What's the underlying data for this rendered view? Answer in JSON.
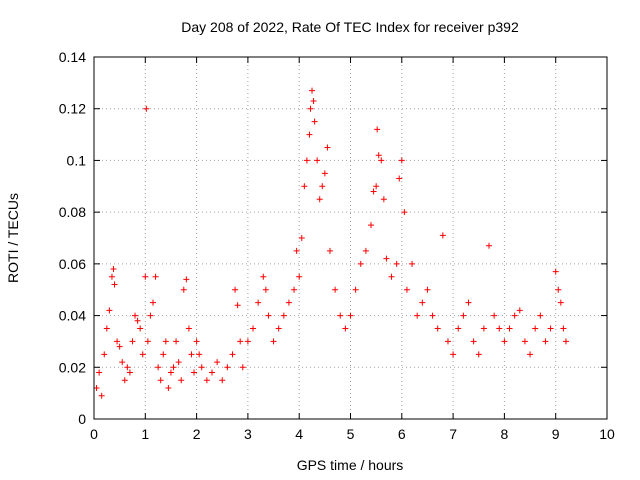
{
  "chart_data": {
    "type": "scatter",
    "title": "Day 208 of 2022, Rate Of TEC Index for receiver p392",
    "xlabel": "GPS time / hours",
    "ylabel": "ROTI / TECUs",
    "xlim": [
      0,
      10
    ],
    "ylim": [
      0,
      0.14
    ],
    "xticks": [
      0,
      1,
      2,
      3,
      4,
      5,
      6,
      7,
      8,
      9,
      10
    ],
    "xtick_labels": [
      "0",
      "1",
      "2",
      "3",
      "4",
      "5",
      "6",
      "7",
      "8",
      "9",
      "10"
    ],
    "yticks": [
      0,
      0.02,
      0.04,
      0.06,
      0.08,
      0.1,
      0.12,
      0.14
    ],
    "ytick_labels": [
      "0",
      "0.02",
      "0.04",
      "0.06",
      "0.08",
      "0.1",
      "0.12",
      "0.14"
    ],
    "grid": true,
    "marker": "+",
    "color": "#ff0000",
    "series": [
      {
        "name": "ROTI",
        "points": [
          [
            0.05,
            0.012
          ],
          [
            0.1,
            0.018
          ],
          [
            0.15,
            0.009
          ],
          [
            0.2,
            0.025
          ],
          [
            0.25,
            0.035
          ],
          [
            0.3,
            0.042
          ],
          [
            0.35,
            0.055
          ],
          [
            0.38,
            0.058
          ],
          [
            0.4,
            0.052
          ],
          [
            0.45,
            0.03
          ],
          [
            0.5,
            0.028
          ],
          [
            0.55,
            0.022
          ],
          [
            0.6,
            0.015
          ],
          [
            0.65,
            0.02
          ],
          [
            0.7,
            0.018
          ],
          [
            0.75,
            0.03
          ],
          [
            0.8,
            0.04
          ],
          [
            0.85,
            0.038
          ],
          [
            0.9,
            0.035
          ],
          [
            0.95,
            0.025
          ],
          [
            1.0,
            0.055
          ],
          [
            1.02,
            0.12
          ],
          [
            1.05,
            0.03
          ],
          [
            1.1,
            0.04
          ],
          [
            1.15,
            0.045
          ],
          [
            1.2,
            0.055
          ],
          [
            1.25,
            0.02
          ],
          [
            1.3,
            0.015
          ],
          [
            1.35,
            0.025
          ],
          [
            1.4,
            0.03
          ],
          [
            1.45,
            0.012
          ],
          [
            1.5,
            0.018
          ],
          [
            1.55,
            0.02
          ],
          [
            1.6,
            0.03
          ],
          [
            1.65,
            0.022
          ],
          [
            1.7,
            0.015
          ],
          [
            1.75,
            0.05
          ],
          [
            1.8,
            0.054
          ],
          [
            1.85,
            0.035
          ],
          [
            1.9,
            0.025
          ],
          [
            1.95,
            0.018
          ],
          [
            2.0,
            0.03
          ],
          [
            2.05,
            0.025
          ],
          [
            2.1,
            0.02
          ],
          [
            2.2,
            0.015
          ],
          [
            2.3,
            0.018
          ],
          [
            2.4,
            0.022
          ],
          [
            2.5,
            0.015
          ],
          [
            2.6,
            0.02
          ],
          [
            2.7,
            0.025
          ],
          [
            2.75,
            0.05
          ],
          [
            2.8,
            0.044
          ],
          [
            2.85,
            0.03
          ],
          [
            2.9,
            0.02
          ],
          [
            3.0,
            0.03
          ],
          [
            3.1,
            0.035
          ],
          [
            3.2,
            0.045
          ],
          [
            3.3,
            0.055
          ],
          [
            3.35,
            0.05
          ],
          [
            3.4,
            0.04
          ],
          [
            3.5,
            0.03
          ],
          [
            3.6,
            0.035
          ],
          [
            3.7,
            0.04
          ],
          [
            3.8,
            0.045
          ],
          [
            3.9,
            0.05
          ],
          [
            3.95,
            0.065
          ],
          [
            4.0,
            0.055
          ],
          [
            4.05,
            0.07
          ],
          [
            4.1,
            0.09
          ],
          [
            4.15,
            0.1
          ],
          [
            4.2,
            0.11
          ],
          [
            4.22,
            0.12
          ],
          [
            4.25,
            0.127
          ],
          [
            4.28,
            0.123
          ],
          [
            4.3,
            0.115
          ],
          [
            4.35,
            0.1
          ],
          [
            4.4,
            0.085
          ],
          [
            4.45,
            0.09
          ],
          [
            4.5,
            0.095
          ],
          [
            4.55,
            0.105
          ],
          [
            4.6,
            0.065
          ],
          [
            4.7,
            0.05
          ],
          [
            4.8,
            0.04
          ],
          [
            4.9,
            0.035
          ],
          [
            5.0,
            0.04
          ],
          [
            5.1,
            0.05
          ],
          [
            5.2,
            0.06
          ],
          [
            5.3,
            0.065
          ],
          [
            5.4,
            0.075
          ],
          [
            5.45,
            0.088
          ],
          [
            5.5,
            0.09
          ],
          [
            5.52,
            0.112
          ],
          [
            5.55,
            0.102
          ],
          [
            5.6,
            0.1
          ],
          [
            5.65,
            0.085
          ],
          [
            5.7,
            0.062
          ],
          [
            5.8,
            0.055
          ],
          [
            5.9,
            0.06
          ],
          [
            5.95,
            0.093
          ],
          [
            6.0,
            0.1
          ],
          [
            6.05,
            0.08
          ],
          [
            6.1,
            0.05
          ],
          [
            6.2,
            0.06
          ],
          [
            6.3,
            0.04
          ],
          [
            6.4,
            0.045
          ],
          [
            6.5,
            0.05
          ],
          [
            6.6,
            0.04
          ],
          [
            6.7,
            0.035
          ],
          [
            6.8,
            0.071
          ],
          [
            6.9,
            0.03
          ],
          [
            7.0,
            0.025
          ],
          [
            7.1,
            0.035
          ],
          [
            7.2,
            0.04
          ],
          [
            7.3,
            0.045
          ],
          [
            7.4,
            0.03
          ],
          [
            7.5,
            0.025
          ],
          [
            7.6,
            0.035
          ],
          [
            7.7,
            0.067
          ],
          [
            7.8,
            0.04
          ],
          [
            7.9,
            0.035
          ],
          [
            8.0,
            0.03
          ],
          [
            8.1,
            0.035
          ],
          [
            8.2,
            0.04
          ],
          [
            8.3,
            0.042
          ],
          [
            8.4,
            0.03
          ],
          [
            8.5,
            0.025
          ],
          [
            8.6,
            0.035
          ],
          [
            8.7,
            0.04
          ],
          [
            8.8,
            0.03
          ],
          [
            8.9,
            0.035
          ],
          [
            9.0,
            0.057
          ],
          [
            9.05,
            0.05
          ],
          [
            9.1,
            0.045
          ],
          [
            9.15,
            0.035
          ],
          [
            9.2,
            0.03
          ]
        ]
      }
    ]
  }
}
